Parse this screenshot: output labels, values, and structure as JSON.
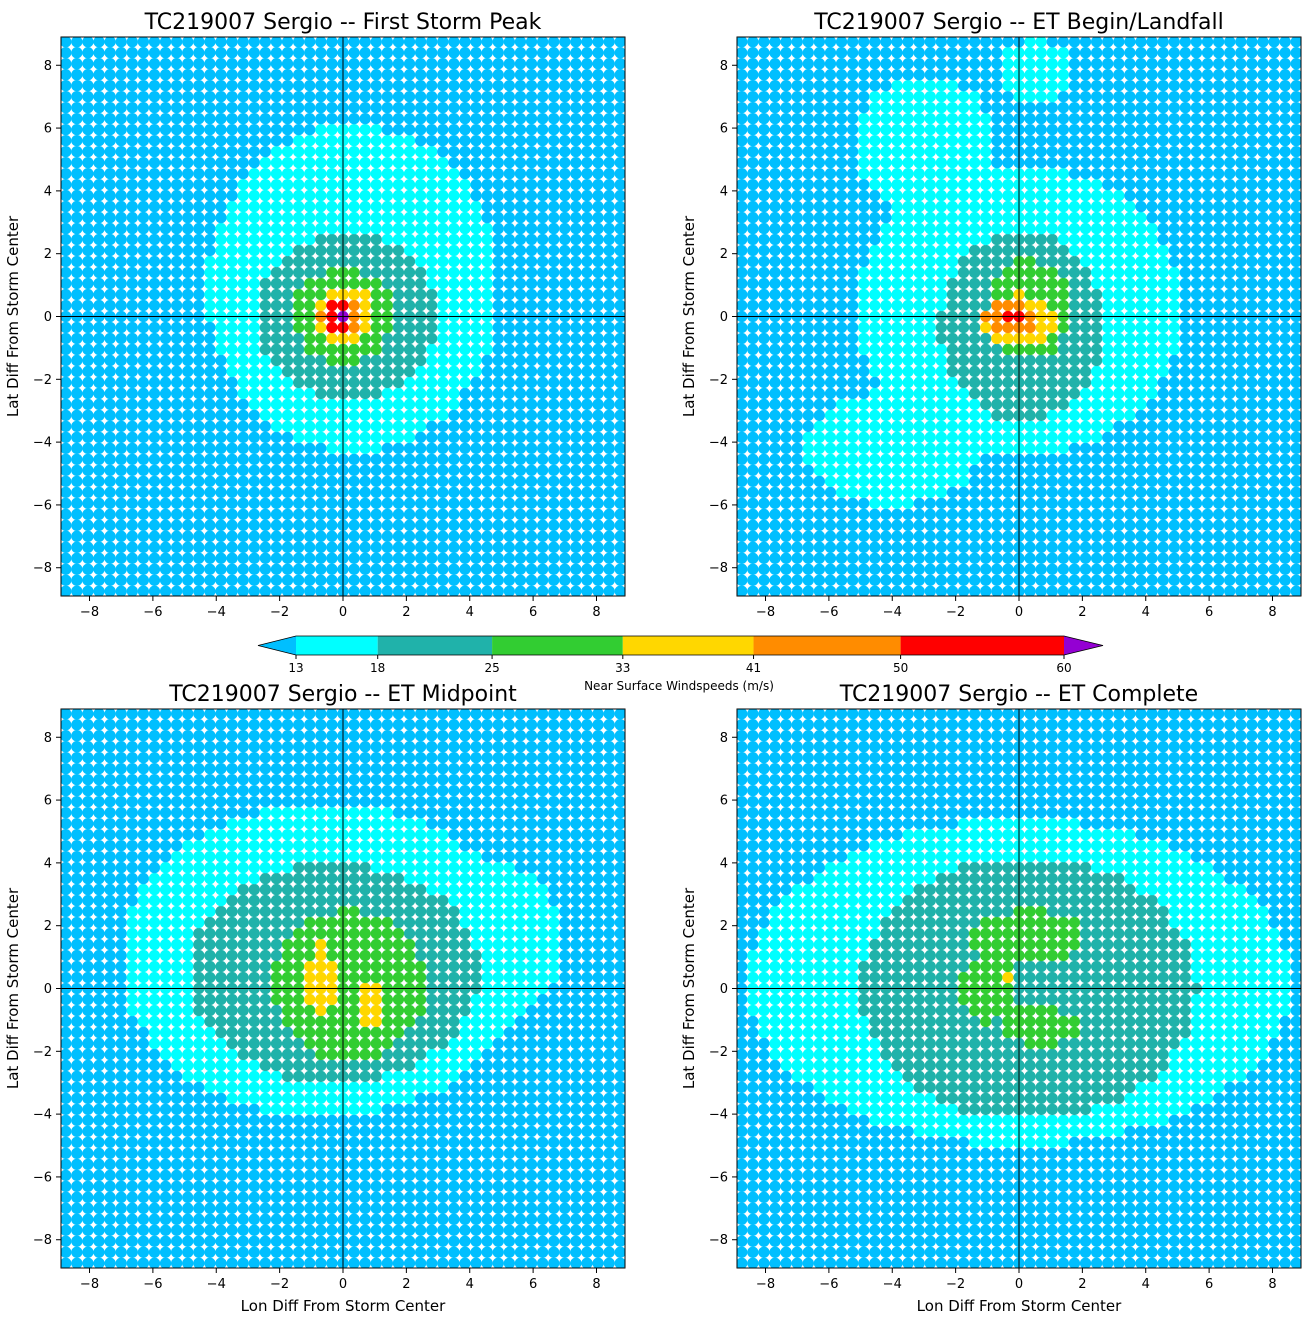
{
  "figure": {
    "colorbar": {
      "label": "Near Surface Windspeeds (m/s)",
      "boundaries": [
        13,
        18,
        25,
        33,
        41,
        50,
        60
      ],
      "under_color": "#00bfff",
      "over_color": "#9400d3",
      "colors": [
        "#00ffff",
        "#20b2aa",
        "#32cd32",
        "#ffd700",
        "#ff8c00",
        "#ff0000"
      ],
      "extend": "both",
      "orientation": "horizontal"
    }
  },
  "chart_data": [
    {
      "type": "scatter",
      "title": "TC219007 Sergio -- First Storm Peak",
      "xlabel": "",
      "ylabel": "Lat Diff From Storm Center",
      "xlim": [
        -8.9,
        8.9
      ],
      "ylim": [
        -8.9,
        8.9
      ],
      "xticks": [
        -8,
        -6,
        -4,
        -2,
        0,
        2,
        4,
        6,
        8
      ],
      "yticks": [
        -8,
        -6,
        -4,
        -2,
        0,
        2,
        4,
        6,
        8
      ],
      "grid_spacing": 0.35,
      "grid_range": [
        -8.75,
        8.75
      ],
      "color_by": "wind_speed_ms",
      "crosshair": [
        0,
        0
      ],
      "background_value": 10,
      "wind_field": [
        {
          "center": [
            0.3,
            0.9
          ],
          "radius": [
            4.6,
            5.2
          ],
          "value": 14
        },
        {
          "center": [
            2.5,
            1.2
          ],
          "radius": [
            2.2,
            2.4
          ],
          "value": 14
        },
        {
          "center": [
            0.1,
            0.0
          ],
          "radius": [
            2.9,
            2.6
          ],
          "value": 21
        },
        {
          "center": [
            0.0,
            0.05
          ],
          "radius": [
            1.6,
            1.5
          ],
          "value": 28
        },
        {
          "center": [
            0.05,
            0.05
          ],
          "radius": [
            0.95,
            0.9
          ],
          "value": 36
        },
        {
          "center": [
            -0.1,
            0.0
          ],
          "radius": [
            0.7,
            0.6
          ],
          "value": 45
        },
        {
          "center": [
            -0.2,
            -0.05
          ],
          "radius": [
            0.5,
            0.55
          ],
          "value": 52
        },
        {
          "center": [
            0.0,
            0.0
          ],
          "radius": [
            0.18,
            0.18
          ],
          "value": 62
        }
      ]
    },
    {
      "type": "scatter",
      "title": "TC219007 Sergio -- ET Begin/Landfall",
      "xlabel": "",
      "ylabel": "Lat Diff From Storm Center",
      "xlim": [
        -8.9,
        8.9
      ],
      "ylim": [
        -8.9,
        8.9
      ],
      "xticks": [
        -8,
        -6,
        -4,
        -2,
        0,
        2,
        4,
        6,
        8
      ],
      "yticks": [
        -8,
        -6,
        -4,
        -2,
        0,
        2,
        4,
        6,
        8
      ],
      "grid_spacing": 0.35,
      "grid_range": [
        -8.75,
        8.75
      ],
      "color_by": "wind_speed_ms",
      "crosshair": [
        0,
        0
      ],
      "background_value": 10,
      "wind_field": [
        {
          "center": [
            0.0,
            0.2
          ],
          "radius": [
            5.2,
            4.6
          ],
          "value": 14
        },
        {
          "center": [
            -4.0,
            -4.2
          ],
          "radius": [
            2.8,
            1.8
          ],
          "value": 14
        },
        {
          "center": [
            -3.0,
            5.5
          ],
          "radius": [
            2.2,
            2.2
          ],
          "value": 14
        },
        {
          "center": [
            0.5,
            7.8
          ],
          "radius": [
            1.2,
            1.0
          ],
          "value": 14
        },
        {
          "center": [
            0.1,
            -0.3
          ],
          "radius": [
            2.6,
            3.0
          ],
          "value": 21
        },
        {
          "center": [
            0.3,
            0.2
          ],
          "radius": [
            1.3,
            1.6
          ],
          "value": 28
        },
        {
          "center": [
            0.0,
            -0.1
          ],
          "radius": [
            1.2,
            0.8
          ],
          "value": 36
        },
        {
          "center": [
            -0.2,
            -0.1
          ],
          "radius": [
            0.9,
            0.55
          ],
          "value": 45
        },
        {
          "center": [
            -0.2,
            0.0
          ],
          "radius": [
            0.4,
            0.25
          ],
          "value": 52
        }
      ]
    },
    {
      "type": "scatter",
      "title": "TC219007 Sergio -- ET Midpoint",
      "xlabel": "Lon Diff From Storm Center",
      "ylabel": "Lat Diff From Storm Center",
      "xlim": [
        -8.9,
        8.9
      ],
      "ylim": [
        -8.9,
        8.9
      ],
      "xticks": [
        -8,
        -6,
        -4,
        -2,
        0,
        2,
        4,
        6,
        8
      ],
      "yticks": [
        -8,
        -6,
        -4,
        -2,
        0,
        2,
        4,
        6,
        8
      ],
      "grid_spacing": 0.35,
      "grid_range": [
        -8.75,
        8.75
      ],
      "color_by": "wind_speed_ms",
      "crosshair": [
        0,
        0
      ],
      "background_value": 10,
      "wind_field": [
        {
          "center": [
            -0.6,
            0.9
          ],
          "radius": [
            6.4,
            5.0
          ],
          "value": 14
        },
        {
          "center": [
            4.5,
            1.5
          ],
          "radius": [
            2.5,
            2.5
          ],
          "value": 14
        },
        {
          "center": [
            -0.3,
            0.5
          ],
          "radius": [
            4.6,
            3.5
          ],
          "value": 21
        },
        {
          "center": [
            0.2,
            0.1
          ],
          "radius": [
            2.4,
            2.4
          ],
          "value": 28
        },
        {
          "center": [
            -0.7,
            0.2
          ],
          "radius": [
            0.45,
            1.2
          ],
          "value": 36
        },
        {
          "center": [
            0.9,
            -0.6
          ],
          "radius": [
            0.5,
            0.8
          ],
          "value": 36
        }
      ]
    },
    {
      "type": "scatter",
      "title": "TC219007 Sergio -- ET Complete",
      "xlabel": "Lon Diff From Storm Center",
      "ylabel": "Lat Diff From Storm Center",
      "xlim": [
        -8.9,
        8.9
      ],
      "ylim": [
        -8.9,
        8.9
      ],
      "xticks": [
        -8,
        -6,
        -4,
        -2,
        0,
        2,
        4,
        6,
        8
      ],
      "yticks": [
        -8,
        -6,
        -4,
        -2,
        0,
        2,
        4,
        6,
        8
      ],
      "grid_spacing": 0.35,
      "grid_range": [
        -8.75,
        8.75
      ],
      "color_by": "wind_speed_ms",
      "crosshair": [
        0,
        0
      ],
      "background_value": 10,
      "wind_field": [
        {
          "center": [
            0.0,
            0.2
          ],
          "radius": [
            8.6,
            5.2
          ],
          "value": 14
        },
        {
          "center": [
            0.3,
            0.0
          ],
          "radius": [
            5.3,
            4.2
          ],
          "value": 21
        },
        {
          "center": [
            0.3,
            1.6
          ],
          "radius": [
            1.8,
            0.9
          ],
          "value": 28
        },
        {
          "center": [
            -1.0,
            0.0
          ],
          "radius": [
            0.9,
            1.1
          ],
          "value": 28
        },
        {
          "center": [
            0.6,
            -1.2
          ],
          "radius": [
            1.3,
            0.6
          ],
          "value": 28
        },
        {
          "center": [
            -0.5,
            0.5
          ],
          "radius": [
            0.25,
            0.2
          ],
          "value": 36
        }
      ]
    }
  ]
}
